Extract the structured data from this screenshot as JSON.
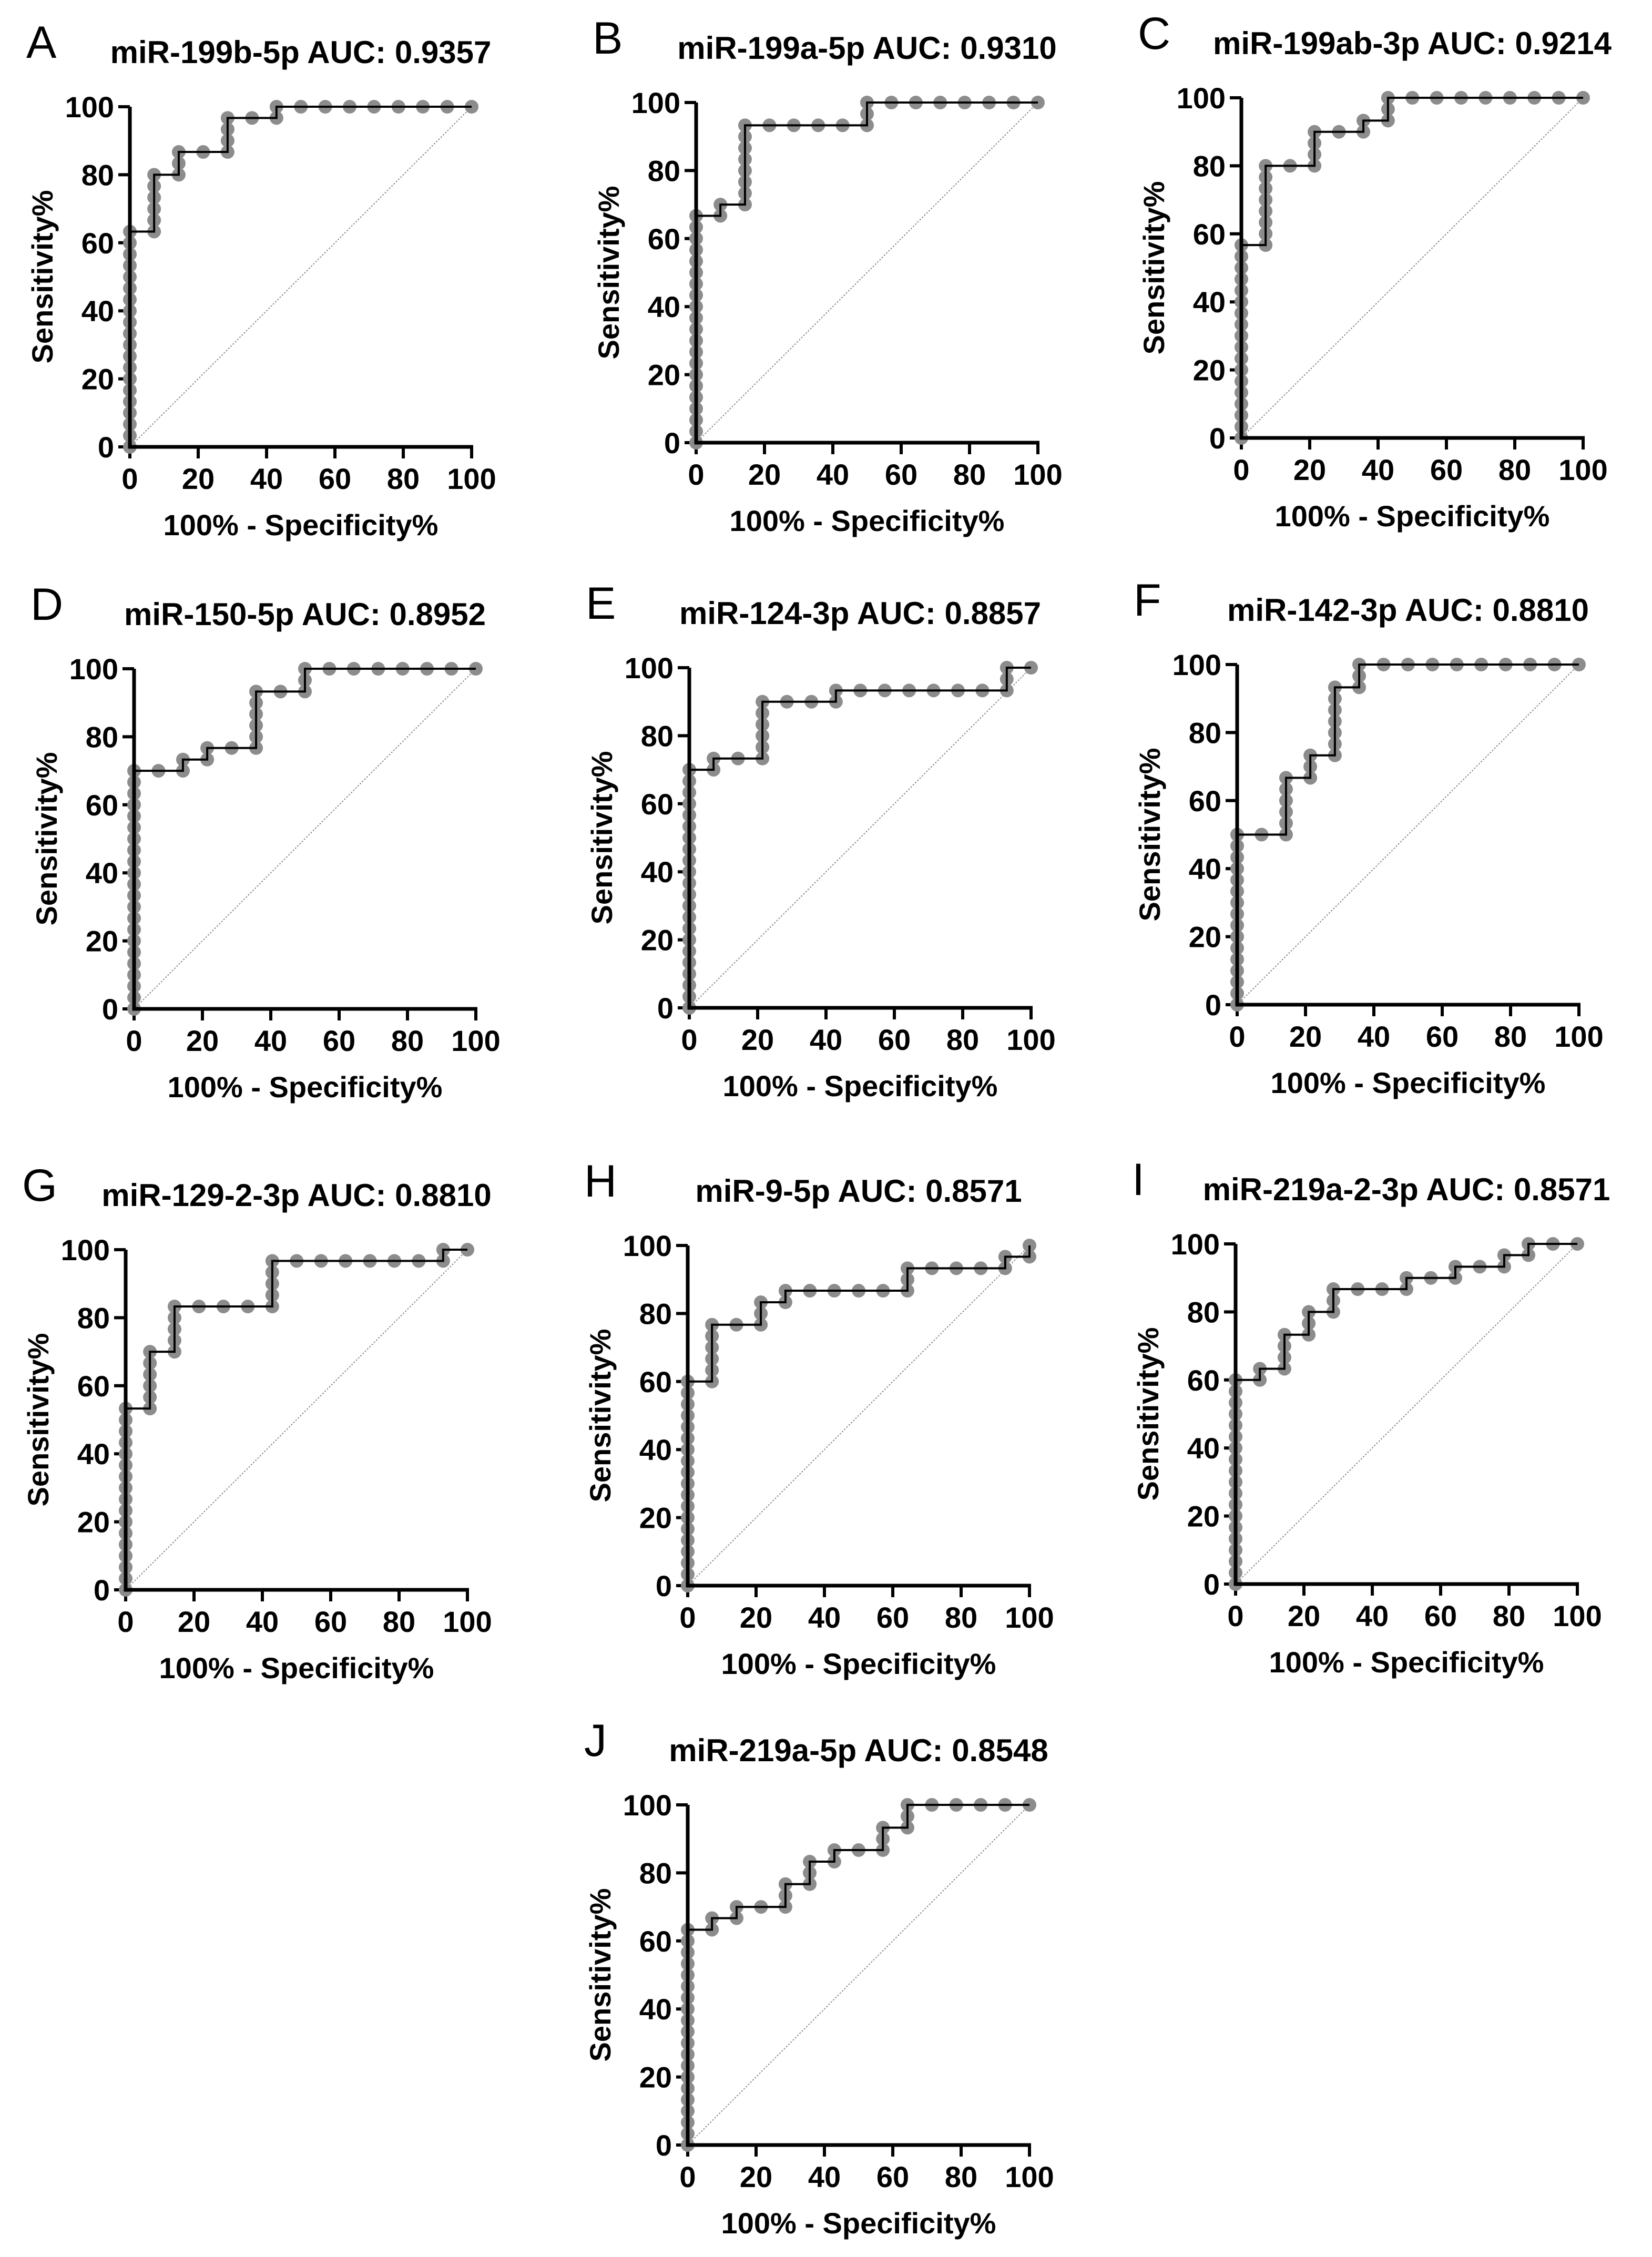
{
  "chart_data": [
    {
      "type": "line",
      "panel": "A",
      "title": "miR-199b-5p AUC: 0.9357",
      "xlabel": "100% - Specificity%",
      "ylabel": "Sensitivity%",
      "xlim": [
        0,
        100
      ],
      "ylim": [
        0,
        100
      ],
      "xticks": [
        "0",
        "20",
        "40",
        "60",
        "80",
        "100"
      ],
      "yticks": [
        "0",
        "20",
        "40",
        "60",
        "80",
        "100"
      ],
      "points": [
        [
          0,
          0
        ],
        [
          0,
          63.3
        ],
        [
          7.1,
          63.3
        ],
        [
          7.1,
          80
        ],
        [
          14.3,
          80
        ],
        [
          14.3,
          86.7
        ],
        [
          28.6,
          86.7
        ],
        [
          28.6,
          96.7
        ],
        [
          42.9,
          96.7
        ],
        [
          42.9,
          100
        ],
        [
          100,
          100
        ]
      ]
    },
    {
      "type": "line",
      "panel": "B",
      "title": "miR-199a-5p AUC: 0.9310",
      "xlabel": "100% - Specificity%",
      "ylabel": "Sensitivity%",
      "xlim": [
        0,
        100
      ],
      "ylim": [
        0,
        100
      ],
      "xticks": [
        "0",
        "20",
        "40",
        "60",
        "80",
        "100"
      ],
      "yticks": [
        "0",
        "20",
        "40",
        "60",
        "80",
        "100"
      ],
      "points": [
        [
          0,
          0
        ],
        [
          0,
          66.7
        ],
        [
          7.1,
          66.7
        ],
        [
          7.1,
          70
        ],
        [
          14.3,
          70
        ],
        [
          14.3,
          93.3
        ],
        [
          50,
          93.3
        ],
        [
          50,
          100
        ],
        [
          100,
          100
        ]
      ]
    },
    {
      "type": "line",
      "panel": "C",
      "title": "miR-199ab-3p AUC: 0.9214",
      "xlabel": "100% - Specificity%",
      "ylabel": "Sensitivity%",
      "xlim": [
        0,
        100
      ],
      "ylim": [
        0,
        100
      ],
      "xticks": [
        "0",
        "20",
        "40",
        "60",
        "80",
        "100"
      ],
      "yticks": [
        "0",
        "20",
        "40",
        "60",
        "80",
        "100"
      ],
      "points": [
        [
          0,
          0
        ],
        [
          0,
          56.7
        ],
        [
          7.1,
          56.7
        ],
        [
          7.1,
          80
        ],
        [
          21.4,
          80
        ],
        [
          21.4,
          90
        ],
        [
          35.7,
          90
        ],
        [
          35.7,
          93.3
        ],
        [
          42.9,
          93.3
        ],
        [
          42.9,
          100
        ],
        [
          100,
          100
        ]
      ]
    },
    {
      "type": "line",
      "panel": "D",
      "title": "miR-150-5p AUC: 0.8952",
      "xlabel": "100% - Specificity%",
      "ylabel": "Sensitivity%",
      "xlim": [
        0,
        100
      ],
      "ylim": [
        0,
        100
      ],
      "xticks": [
        "0",
        "20",
        "40",
        "60",
        "80",
        "100"
      ],
      "yticks": [
        "0",
        "20",
        "40",
        "60",
        "80",
        "100"
      ],
      "points": [
        [
          0,
          0
        ],
        [
          0,
          70
        ],
        [
          14.3,
          70
        ],
        [
          14.3,
          73.3
        ],
        [
          21.4,
          73.3
        ],
        [
          21.4,
          76.7
        ],
        [
          35.7,
          76.7
        ],
        [
          35.7,
          93.3
        ],
        [
          50,
          93.3
        ],
        [
          50,
          100
        ],
        [
          100,
          100
        ]
      ]
    },
    {
      "type": "line",
      "panel": "E",
      "title": "miR-124-3p AUC: 0.8857",
      "xlabel": "100% - Specificity%",
      "ylabel": "Sensitivity%",
      "xlim": [
        0,
        100
      ],
      "ylim": [
        0,
        100
      ],
      "xticks": [
        "0",
        "20",
        "40",
        "60",
        "80",
        "100"
      ],
      "yticks": [
        "0",
        "20",
        "40",
        "60",
        "80",
        "100"
      ],
      "points": [
        [
          0,
          0
        ],
        [
          0,
          70
        ],
        [
          7.1,
          70
        ],
        [
          7.1,
          73.3
        ],
        [
          21.4,
          73.3
        ],
        [
          21.4,
          90
        ],
        [
          42.9,
          90
        ],
        [
          42.9,
          93.3
        ],
        [
          92.9,
          93.3
        ],
        [
          92.9,
          100
        ],
        [
          100,
          100
        ]
      ]
    },
    {
      "type": "line",
      "panel": "F",
      "title": "miR-142-3p AUC: 0.8810",
      "xlabel": "100% - Specificity%",
      "ylabel": "Sensitivity%",
      "xlim": [
        0,
        100
      ],
      "ylim": [
        0,
        100
      ],
      "xticks": [
        "0",
        "20",
        "40",
        "60",
        "80",
        "100"
      ],
      "yticks": [
        "0",
        "20",
        "40",
        "60",
        "80",
        "100"
      ],
      "points": [
        [
          0,
          0
        ],
        [
          0,
          50
        ],
        [
          14.3,
          50
        ],
        [
          14.3,
          66.7
        ],
        [
          21.4,
          66.7
        ],
        [
          21.4,
          73.3
        ],
        [
          28.6,
          73.3
        ],
        [
          28.6,
          93.3
        ],
        [
          35.7,
          93.3
        ],
        [
          35.7,
          100
        ],
        [
          100,
          100
        ]
      ]
    },
    {
      "type": "line",
      "panel": "G",
      "title": "miR-129-2-3p AUC: 0.8810",
      "xlabel": "100% - Specificity%",
      "ylabel": "Sensitivity%",
      "xlim": [
        0,
        100
      ],
      "ylim": [
        0,
        100
      ],
      "xticks": [
        "0",
        "20",
        "40",
        "60",
        "80",
        "100"
      ],
      "yticks": [
        "0",
        "20",
        "40",
        "60",
        "80",
        "100"
      ],
      "points": [
        [
          0,
          0
        ],
        [
          0,
          53.3
        ],
        [
          7.1,
          53.3
        ],
        [
          7.1,
          70
        ],
        [
          14.3,
          70
        ],
        [
          14.3,
          83.3
        ],
        [
          42.9,
          83.3
        ],
        [
          42.9,
          96.7
        ],
        [
          92.9,
          96.7
        ],
        [
          92.9,
          100
        ],
        [
          100,
          100
        ]
      ]
    },
    {
      "type": "line",
      "panel": "H",
      "title": "miR-9-5p AUC: 0.8571",
      "xlabel": "100% - Specificity%",
      "ylabel": "Sensitivity%",
      "xlim": [
        0,
        100
      ],
      "ylim": [
        0,
        100
      ],
      "xticks": [
        "0",
        "20",
        "40",
        "60",
        "80",
        "100"
      ],
      "yticks": [
        "0",
        "20",
        "40",
        "60",
        "80",
        "100"
      ],
      "points": [
        [
          0,
          0
        ],
        [
          0,
          60
        ],
        [
          7.1,
          60
        ],
        [
          7.1,
          76.7
        ],
        [
          21.4,
          76.7
        ],
        [
          21.4,
          83.3
        ],
        [
          28.6,
          83.3
        ],
        [
          28.6,
          86.7
        ],
        [
          64.3,
          86.7
        ],
        [
          64.3,
          93.3
        ],
        [
          92.9,
          93.3
        ],
        [
          92.9,
          96.7
        ],
        [
          100,
          96.7
        ],
        [
          100,
          100
        ]
      ]
    },
    {
      "type": "line",
      "panel": "I",
      "title": "miR-219a-2-3p AUC: 0.8571",
      "xlabel": "100% - Specificity%",
      "ylabel": "Sensitivity%",
      "xlim": [
        0,
        100
      ],
      "ylim": [
        0,
        100
      ],
      "xticks": [
        "0",
        "20",
        "40",
        "60",
        "80",
        "100"
      ],
      "yticks": [
        "0",
        "20",
        "40",
        "60",
        "80",
        "100"
      ],
      "points": [
        [
          0,
          0
        ],
        [
          0,
          60
        ],
        [
          7.1,
          60
        ],
        [
          7.1,
          63.3
        ],
        [
          14.3,
          63.3
        ],
        [
          14.3,
          73.3
        ],
        [
          21.4,
          73.3
        ],
        [
          21.4,
          80
        ],
        [
          28.6,
          80
        ],
        [
          28.6,
          86.7
        ],
        [
          50,
          86.7
        ],
        [
          50,
          90
        ],
        [
          64.3,
          90
        ],
        [
          64.3,
          93.3
        ],
        [
          78.6,
          93.3
        ],
        [
          78.6,
          96.7
        ],
        [
          85.7,
          96.7
        ],
        [
          85.7,
          100
        ],
        [
          100,
          100
        ]
      ]
    },
    {
      "type": "line",
      "panel": "J",
      "title": "miR-219a-5p AUC: 0.8548",
      "xlabel": "100% - Specificity%",
      "ylabel": "Sensitivity%",
      "xlim": [
        0,
        100
      ],
      "ylim": [
        0,
        100
      ],
      "xticks": [
        "0",
        "20",
        "40",
        "60",
        "80",
        "100"
      ],
      "yticks": [
        "0",
        "20",
        "40",
        "60",
        "80",
        "100"
      ],
      "points": [
        [
          0,
          0
        ],
        [
          0,
          63.3
        ],
        [
          7.1,
          63.3
        ],
        [
          7.1,
          66.7
        ],
        [
          14.3,
          66.7
        ],
        [
          14.3,
          70
        ],
        [
          28.6,
          70
        ],
        [
          28.6,
          76.7
        ],
        [
          35.7,
          76.7
        ],
        [
          35.7,
          83.3
        ],
        [
          42.9,
          83.3
        ],
        [
          42.9,
          86.7
        ],
        [
          57.1,
          86.7
        ],
        [
          57.1,
          93.3
        ],
        [
          64.3,
          93.3
        ],
        [
          64.3,
          100
        ],
        [
          100,
          100
        ]
      ]
    }
  ],
  "colors": {
    "curve": "#000000",
    "points": "#8c8c8c",
    "diagonal": "#8c8c8c",
    "axis": "#000000"
  }
}
